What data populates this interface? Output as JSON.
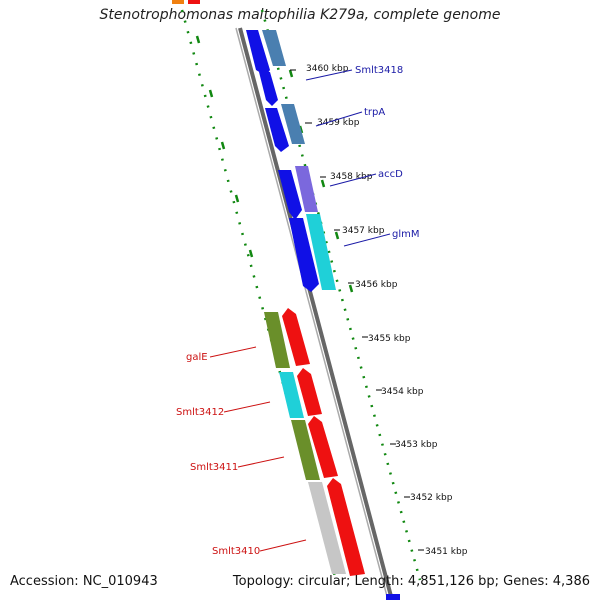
{
  "title": "Stenotrophomonas maltophilia K279a, complete genome",
  "accession_text": "Accession: NC_010943",
  "topology_text": "Topology: circular; Length: 4,851,126 bp; Genes: 4,386",
  "ticks": [
    {
      "label": "3460 kbp"
    },
    {
      "label": "3459 kbp"
    },
    {
      "label": "3458 kbp"
    },
    {
      "label": "3457 kbp"
    },
    {
      "label": "3456 kbp"
    },
    {
      "label": "3455 kbp"
    },
    {
      "label": "3454 kbp"
    },
    {
      "label": "3453 kbp"
    },
    {
      "label": "3452 kbp"
    },
    {
      "label": "3451 kbp"
    }
  ],
  "forward_labels": [
    {
      "name": "Smlt3418"
    },
    {
      "name": "trpA"
    },
    {
      "name": "accD"
    },
    {
      "name": "glmM"
    }
  ],
  "reverse_labels": [
    {
      "name": "galE"
    },
    {
      "name": "Smlt3412"
    },
    {
      "name": "Smlt3411"
    },
    {
      "name": "Smlt3410"
    }
  ],
  "colors": {
    "backbone": "#7a7a7a",
    "forward_gene": "#1010e6",
    "reverse_gene": "#ee1111",
    "steelblue_orf": "#4a7fb0",
    "violet_orf": "#7b68dd",
    "cyan_orf": "#1fd0d8",
    "olive_orf": "#6a8f2a",
    "gray_orf": "#c6c6c6",
    "gc_skew_dots": "#118811",
    "forward_label": "#1a1aa6",
    "reverse_label": "#cc1111",
    "tick_text": "#111111"
  }
}
